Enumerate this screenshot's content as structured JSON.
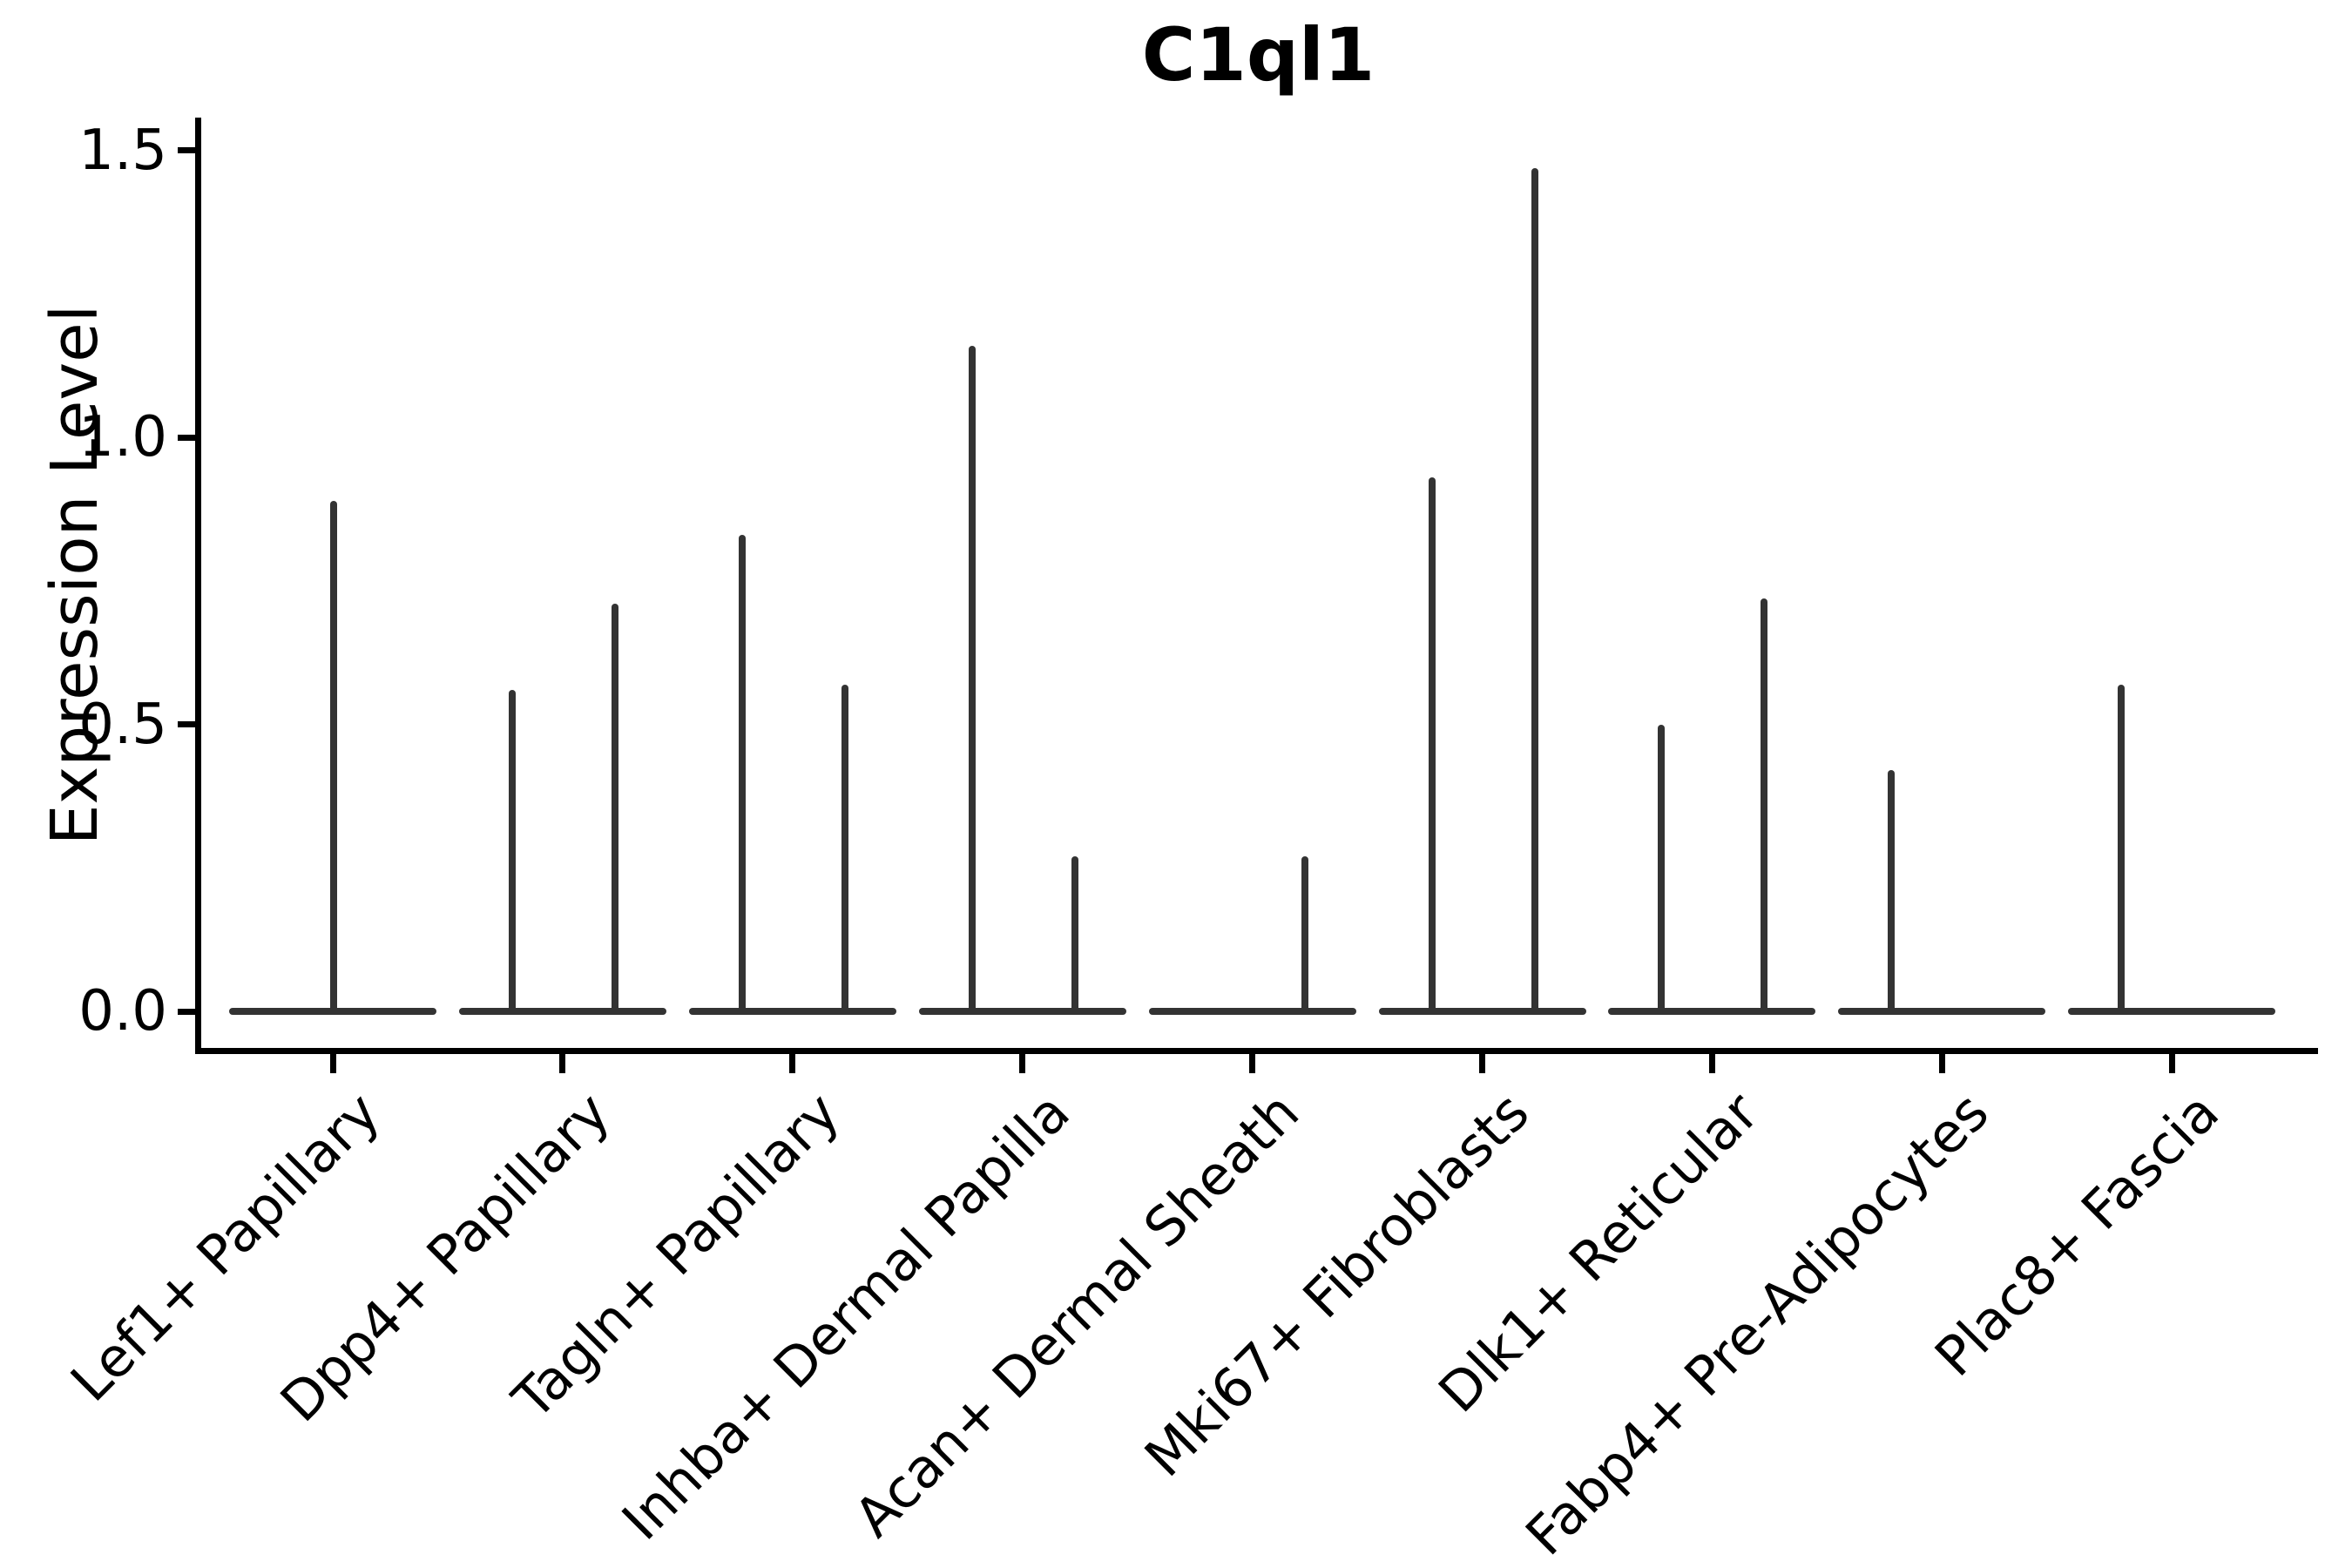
{
  "figure": {
    "background_color": "#ffffff",
    "line_color": "#333333",
    "axis_color": "#000000",
    "text_color": "#000000"
  },
  "chart_data": {
    "type": "violin",
    "title": "C1ql1",
    "xlabel": "",
    "ylabel": "Expression Level",
    "ylim": [
      -0.07,
      1.56
    ],
    "yticks": [
      0.0,
      0.5,
      1.0,
      1.5
    ],
    "ytick_labels": [
      "0.0",
      "0.5",
      "1.0",
      "1.5"
    ],
    "grid": false,
    "legend": "none",
    "categories": [
      "Lef1+ Papillary",
      "Dpp4+ Papillary",
      "Tagln+ Papillary",
      "Inhba+ Dermal Papilla",
      "Acan+ Dermal Sheath",
      "Mki67+ Fibroblasts",
      "Dlk1+ Reticular",
      "Fabp4+ Pre-Adipocytes",
      "Plac8+ Fascia"
    ],
    "groups": [
      {
        "category": "Lef1+ Papillary",
        "violins": [
          {
            "position": "center",
            "max_expression": 0.89
          }
        ]
      },
      {
        "category": "Dpp4+ Papillary",
        "violins": [
          {
            "position": "left",
            "max_expression": 0.56
          },
          {
            "position": "right",
            "max_expression": 0.71
          }
        ]
      },
      {
        "category": "Tagln+ Papillary",
        "violins": [
          {
            "position": "left",
            "max_expression": 0.83
          },
          {
            "position": "right",
            "max_expression": 0.57
          }
        ]
      },
      {
        "category": "Inhba+ Dermal Papilla",
        "violins": [
          {
            "position": "left",
            "max_expression": 1.16
          },
          {
            "position": "right",
            "max_expression": 0.27
          }
        ]
      },
      {
        "category": "Acan+ Dermal Sheath",
        "violins": [
          {
            "position": "right",
            "max_expression": 0.27
          }
        ]
      },
      {
        "category": "Mki67+ Fibroblasts",
        "violins": [
          {
            "position": "left",
            "max_expression": 0.93
          },
          {
            "position": "right",
            "max_expression": 1.47
          }
        ]
      },
      {
        "category": "Dlk1+ Reticular",
        "violins": [
          {
            "position": "left",
            "max_expression": 0.5
          },
          {
            "position": "right",
            "max_expression": 0.72
          }
        ]
      },
      {
        "category": "Fabp4+ Pre-Adipocytes",
        "violins": [
          {
            "position": "left",
            "max_expression": 0.42
          }
        ]
      },
      {
        "category": "Plac8+ Fascia",
        "violins": [
          {
            "position": "left",
            "max_expression": 0.57
          }
        ]
      }
    ],
    "description": "All violins are extremely narrow: a flat body at expression 0 with a thin spike up to the max expression value."
  }
}
